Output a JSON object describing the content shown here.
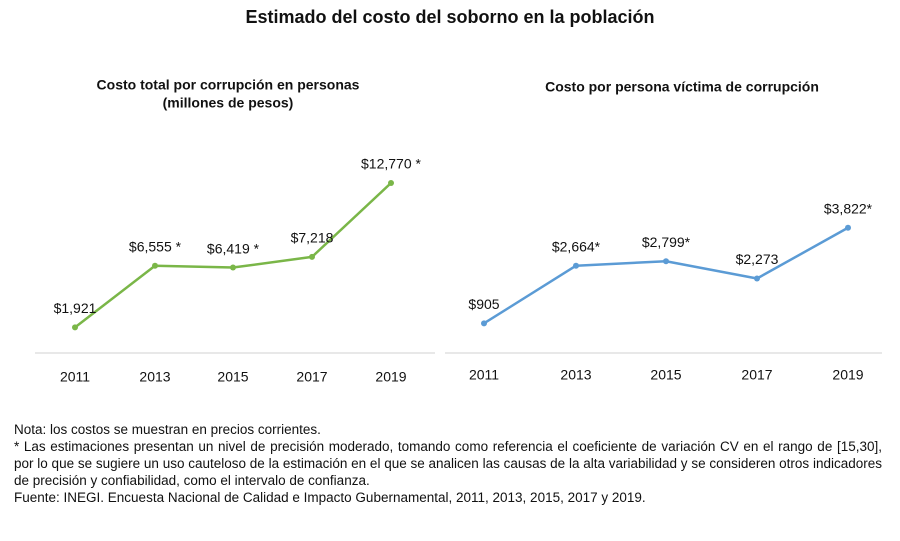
{
  "title": "Estimado del costo del soborno en la población",
  "chart_data": [
    {
      "type": "line",
      "title": "Costo total por corrupción en personas",
      "subtitle": "(millones de pesos)",
      "categories": [
        "2011",
        "2013",
        "2015",
        "2017",
        "2019"
      ],
      "values": [
        1921,
        6555,
        6419,
        7218,
        12770
      ],
      "value_labels": [
        "$1,921",
        "$6,555 *",
        "$6,419 *",
        "$7,218",
        "$12,770 *"
      ],
      "color": "#7ab648",
      "ylim": [
        0,
        16000
      ]
    },
    {
      "type": "line",
      "title": "Costo por persona víctima de corrupción",
      "categories": [
        "2011",
        "2013",
        "2015",
        "2017",
        "2019"
      ],
      "values": [
        905,
        2664,
        2799,
        2273,
        3822
      ],
      "value_labels": [
        "$905",
        "$2,664*",
        "$2,799*",
        "$2,273",
        "$3,822*"
      ],
      "color": "#5b9bd5",
      "ylim": [
        0,
        6500
      ]
    }
  ],
  "notes": [
    "Nota: los costos se muestran en precios corrientes.",
    "* Las estimaciones presentan un nivel de precisión moderado, tomando como referencia el coeficiente de variación CV en el rango de [15,30], por lo que se sugiere un uso cauteloso de la estimación en el que se analicen las causas de la alta variabilidad y se consideren otros indicadores de precisión y confiabilidad, como el intervalo de confianza.",
    "Fuente: INEGI. Encuesta Nacional de Calidad e Impacto Gubernamental, 2011, 2013, 2015, 2017 y 2019."
  ]
}
